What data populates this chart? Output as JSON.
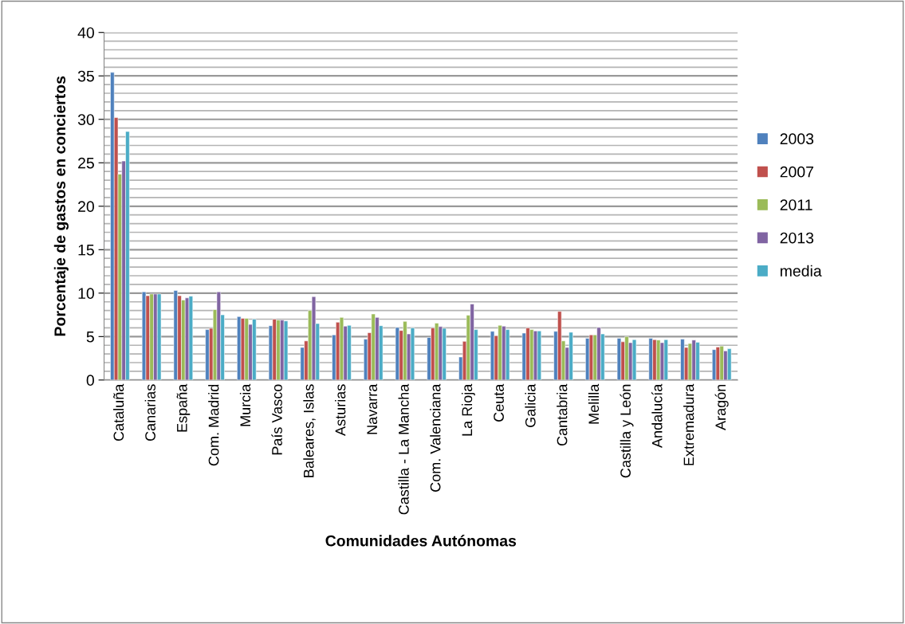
{
  "chart_data": {
    "type": "bar",
    "xlabel": "Comunidades Autónomas",
    "ylabel": "Porcentaje de gastos en conciertos",
    "categories": [
      "Cataluña",
      "Canarias",
      "España",
      "Com. Madrid",
      "Murcia",
      "País Vasco",
      "Baleares, Islas",
      "Asturias",
      "Navarra",
      "Castilla - La Mancha",
      "Com. Valenciana",
      "La Rioja",
      "Ceuta",
      "Galicia",
      "Cantabria",
      "Melilla",
      "Castilla y León",
      "Andalucía",
      "Extremadura",
      "Aragón"
    ],
    "series": [
      {
        "name": "2003",
        "color": "#4f81bd",
        "values": [
          35.4,
          10.15,
          10.3,
          5.8,
          7.3,
          6.25,
          3.75,
          5.2,
          4.7,
          6.05,
          4.9,
          2.65,
          5.6,
          5.4,
          5.6,
          4.8,
          4.8,
          4.8,
          4.7,
          3.5
        ]
      },
      {
        "name": "2007",
        "color": "#c0504d",
        "values": [
          30.2,
          9.7,
          9.7,
          5.95,
          7.1,
          7.0,
          4.5,
          6.65,
          5.45,
          5.7,
          6.0,
          4.45,
          5.1,
          6.0,
          7.9,
          5.2,
          4.4,
          4.65,
          3.75,
          3.8
        ]
      },
      {
        "name": "2011",
        "color": "#9bbb59",
        "values": [
          23.7,
          9.9,
          9.2,
          8.1,
          7.1,
          6.9,
          8.0,
          7.2,
          7.6,
          6.75,
          6.55,
          7.45,
          6.3,
          5.8,
          4.5,
          5.2,
          5.0,
          4.6,
          4.2,
          3.9
        ]
      },
      {
        "name": "2013",
        "color": "#8064a2",
        "values": [
          25.2,
          9.9,
          9.45,
          10.15,
          6.4,
          6.9,
          9.6,
          6.2,
          7.2,
          5.3,
          6.15,
          8.75,
          6.2,
          5.65,
          3.75,
          6.05,
          4.3,
          4.3,
          4.6,
          3.35
        ]
      },
      {
        "name": "media",
        "color": "#4bacc6",
        "values": [
          28.6,
          9.9,
          9.65,
          7.5,
          7.0,
          6.8,
          6.5,
          6.3,
          6.25,
          6.0,
          5.95,
          5.8,
          5.8,
          5.65,
          5.5,
          5.3,
          4.65,
          4.65,
          4.35,
          3.6
        ]
      }
    ],
    "ylim": [
      0,
      40
    ],
    "yticks": [
      0,
      5,
      10,
      15,
      20,
      25,
      30,
      35,
      40
    ],
    "grid": "y",
    "legend": "right"
  }
}
